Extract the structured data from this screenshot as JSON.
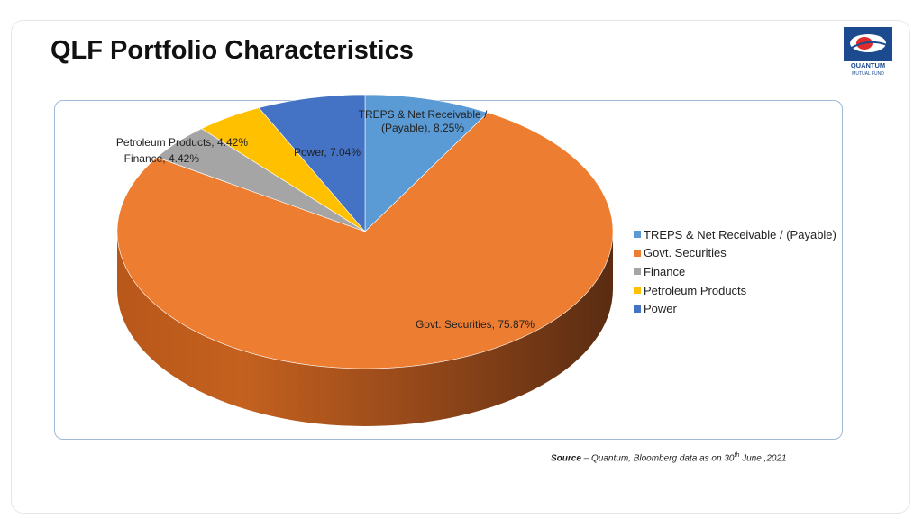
{
  "page": {
    "title": "QLF Portfolio Characteristics",
    "logo_text_1": "QUANTUM",
    "logo_text_2": "MUTUAL FUND"
  },
  "source": {
    "label": "Source",
    "text_1": " – Quantum, Bloomberg data as on  30",
    "superscript": "th",
    "text_2": " June ,2021"
  },
  "chart_data": {
    "type": "pie",
    "slices": [
      {
        "name": "TREPS & Net Receivable / (Payable)",
        "value": 8.25,
        "color": "#5B9BD5",
        "label_lines": [
          "TREPS & Net Receivable /",
          "(Payable), 8.25%"
        ]
      },
      {
        "name": "Govt. Securities",
        "value": 75.87,
        "color": "#ED7D31",
        "label_lines": [
          "Govt. Securities, 75.87%"
        ]
      },
      {
        "name": "Finance",
        "value": 4.42,
        "color": "#A5A5A5",
        "label_lines": [
          "Finance, 4.42%"
        ]
      },
      {
        "name": "Petroleum Products",
        "value": 4.42,
        "color": "#FFC000",
        "label_lines": [
          "Petroleum Products, 4.42%"
        ]
      },
      {
        "name": "Power",
        "value": 7.04,
        "color": "#4472C4",
        "label_lines": [
          "Power, 7.04%"
        ]
      }
    ],
    "legend_position": "right"
  }
}
